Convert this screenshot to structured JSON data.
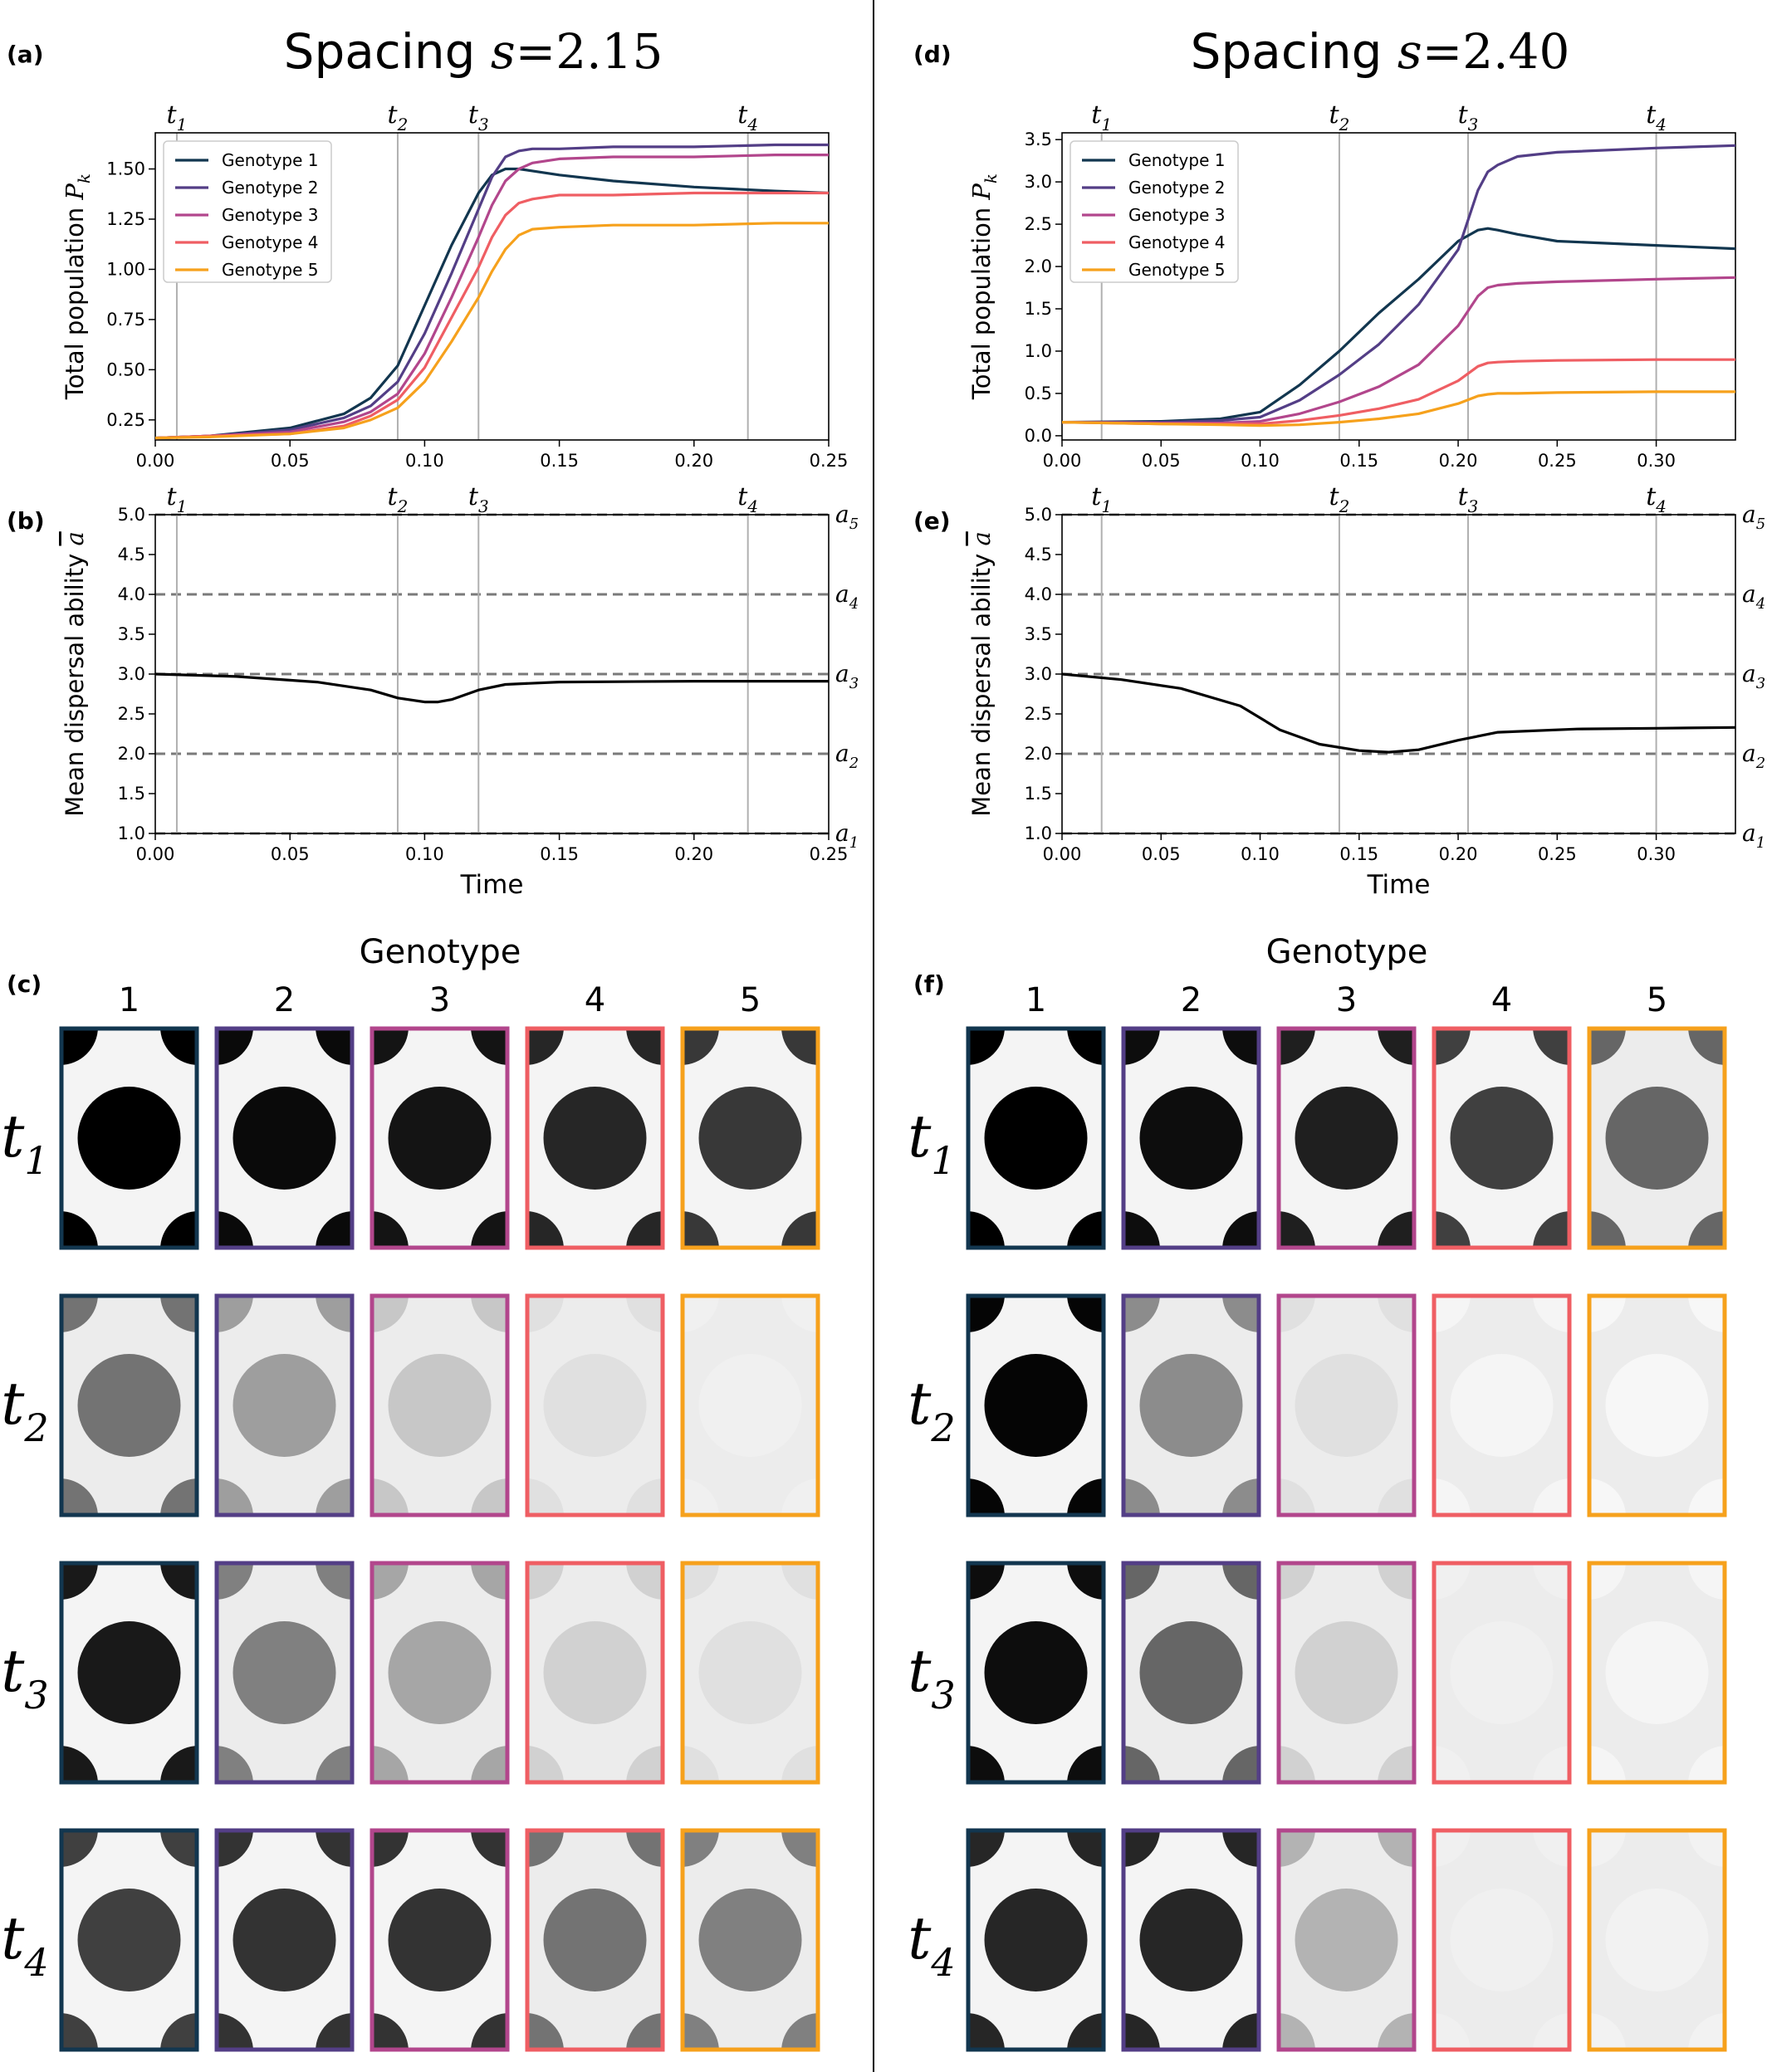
{
  "colors": {
    "genotypes": [
      "#12364f",
      "#533e86",
      "#b2468c",
      "#ef5e63",
      "#f6a11c"
    ],
    "vline": "#b0b0b0",
    "dashed": "#7a7a7a"
  },
  "panels": [
    {
      "pop_label": "(a)",
      "disp_label": "(b)",
      "grid_label": "(c)",
      "title_prefix": "Spacing",
      "title_var": "s",
      "title_value": "=2.15",
      "t_marks": [
        0.008,
        0.09,
        0.12,
        0.22
      ],
      "grid_header": "Genotype",
      "grid_intensity": [
        [
          1.0,
          0.96,
          0.92,
          0.85,
          0.78
        ],
        [
          0.55,
          0.38,
          0.22,
          0.12,
          0.06
        ],
        [
          0.9,
          0.5,
          0.35,
          0.18,
          0.12
        ],
        [
          0.75,
          0.8,
          0.8,
          0.55,
          0.5
        ]
      ]
    },
    {
      "pop_label": "(d)",
      "disp_label": "(e)",
      "grid_label": "(f)",
      "title_prefix": "Spacing",
      "title_var": "s",
      "title_value": "=2.40",
      "t_marks": [
        0.02,
        0.14,
        0.205,
        0.3
      ],
      "grid_header": "Genotype",
      "grid_intensity": [
        [
          1.0,
          0.95,
          0.88,
          0.75,
          0.6
        ],
        [
          0.98,
          0.45,
          0.12,
          0.04,
          0.03
        ],
        [
          0.95,
          0.6,
          0.18,
          0.06,
          0.04
        ],
        [
          0.85,
          0.85,
          0.3,
          0.06,
          0.05
        ]
      ]
    }
  ],
  "chart_data": [
    {
      "type": "line",
      "title": "Spacing s=2.15",
      "xlabel": "",
      "ylabel": "Total population P_k",
      "xlim": [
        0,
        0.25
      ],
      "ylim": [
        0.15,
        1.68
      ],
      "xticks": [
        "0.00",
        "0.05",
        "0.10",
        "0.15",
        "0.20",
        "0.25"
      ],
      "xtick_values": [
        0,
        0.05,
        0.1,
        0.15,
        0.2,
        0.25
      ],
      "yticks": [
        "0.25",
        "0.50",
        "0.75",
        "1.00",
        "1.25",
        "1.50"
      ],
      "ytick_values": [
        0.25,
        0.5,
        0.75,
        1.0,
        1.25,
        1.5
      ],
      "time_markers": [
        "t1",
        "t2",
        "t3",
        "t4"
      ],
      "legend_loc": "upper-left",
      "x": [
        0,
        0.02,
        0.05,
        0.07,
        0.08,
        0.09,
        0.1,
        0.11,
        0.12,
        0.125,
        0.13,
        0.135,
        0.14,
        0.15,
        0.17,
        0.2,
        0.23,
        0.25
      ],
      "series": [
        {
          "name": "Genotype 1",
          "values": [
            0.16,
            0.17,
            0.21,
            0.28,
            0.36,
            0.52,
            0.82,
            1.12,
            1.38,
            1.47,
            1.5,
            1.5,
            1.49,
            1.47,
            1.44,
            1.41,
            1.39,
            1.38
          ]
        },
        {
          "name": "Genotype 2",
          "values": [
            0.16,
            0.17,
            0.2,
            0.26,
            0.32,
            0.44,
            0.68,
            0.98,
            1.3,
            1.46,
            1.56,
            1.59,
            1.6,
            1.6,
            1.61,
            1.61,
            1.62,
            1.62
          ]
        },
        {
          "name": "Genotype 3",
          "values": [
            0.16,
            0.17,
            0.19,
            0.24,
            0.29,
            0.38,
            0.58,
            0.86,
            1.16,
            1.32,
            1.44,
            1.5,
            1.53,
            1.55,
            1.56,
            1.56,
            1.57,
            1.57
          ]
        },
        {
          "name": "Genotype 4",
          "values": [
            0.16,
            0.17,
            0.18,
            0.22,
            0.27,
            0.35,
            0.51,
            0.76,
            1.01,
            1.16,
            1.27,
            1.33,
            1.35,
            1.37,
            1.37,
            1.38,
            1.38,
            1.38
          ]
        },
        {
          "name": "Genotype 5",
          "values": [
            0.16,
            0.165,
            0.18,
            0.21,
            0.25,
            0.31,
            0.44,
            0.64,
            0.86,
            0.99,
            1.1,
            1.17,
            1.2,
            1.21,
            1.22,
            1.22,
            1.23,
            1.23
          ]
        }
      ]
    },
    {
      "type": "line",
      "xlabel": "Time",
      "ylabel": "Mean dispersal ability a̅",
      "xlim": [
        0,
        0.25
      ],
      "ylim": [
        1.0,
        5.0
      ],
      "xticks": [
        "0.00",
        "0.05",
        "0.10",
        "0.15",
        "0.20",
        "0.25"
      ],
      "xtick_values": [
        0,
        0.05,
        0.1,
        0.15,
        0.2,
        0.25
      ],
      "yticks": [
        "1.0",
        "1.5",
        "2.0",
        "2.5",
        "3.0",
        "3.5",
        "4.0",
        "4.5",
        "5.0"
      ],
      "ytick_values": [
        1.0,
        1.5,
        2.0,
        2.5,
        3.0,
        3.5,
        4.0,
        4.5,
        5.0
      ],
      "right_labels": [
        "a1",
        "a2",
        "a3",
        "a4",
        "a5"
      ],
      "dashed_levels": [
        1,
        2,
        3,
        4,
        5
      ],
      "time_markers": [
        "t1",
        "t2",
        "t3",
        "t4"
      ],
      "x": [
        0,
        0.03,
        0.06,
        0.08,
        0.09,
        0.1,
        0.105,
        0.11,
        0.12,
        0.13,
        0.15,
        0.2,
        0.25
      ],
      "series": [
        {
          "values": [
            3.0,
            2.97,
            2.9,
            2.8,
            2.7,
            2.65,
            2.65,
            2.68,
            2.8,
            2.87,
            2.9,
            2.91,
            2.91
          ]
        }
      ]
    },
    {
      "type": "line",
      "title": "Spacing s=2.40",
      "xlabel": "",
      "ylabel": "Total population P_k",
      "xlim": [
        0,
        0.34
      ],
      "ylim": [
        -0.05,
        3.58
      ],
      "xticks": [
        "0.00",
        "0.05",
        "0.10",
        "0.15",
        "0.20",
        "0.25",
        "0.30"
      ],
      "xtick_values": [
        0,
        0.05,
        0.1,
        0.15,
        0.2,
        0.25,
        0.3
      ],
      "yticks": [
        "0.0",
        "0.5",
        "1.0",
        "1.5",
        "2.0",
        "2.5",
        "3.0",
        "3.5"
      ],
      "ytick_values": [
        0,
        0.5,
        1.0,
        1.5,
        2.0,
        2.5,
        3.0,
        3.5
      ],
      "time_markers": [
        "t1",
        "t2",
        "t3",
        "t4"
      ],
      "legend_loc": "upper-left",
      "x": [
        0,
        0.05,
        0.08,
        0.1,
        0.12,
        0.14,
        0.16,
        0.18,
        0.2,
        0.21,
        0.215,
        0.22,
        0.23,
        0.25,
        0.3,
        0.34
      ],
      "series": [
        {
          "name": "Genotype 1",
          "values": [
            0.16,
            0.17,
            0.2,
            0.28,
            0.6,
            1.0,
            1.45,
            1.85,
            2.3,
            2.43,
            2.45,
            2.43,
            2.38,
            2.3,
            2.25,
            2.21
          ]
        },
        {
          "name": "Genotype 2",
          "values": [
            0.16,
            0.16,
            0.18,
            0.22,
            0.42,
            0.72,
            1.08,
            1.55,
            2.2,
            2.9,
            3.12,
            3.2,
            3.3,
            3.35,
            3.4,
            3.43
          ]
        },
        {
          "name": "Genotype 3",
          "values": [
            0.16,
            0.15,
            0.15,
            0.17,
            0.26,
            0.4,
            0.58,
            0.84,
            1.3,
            1.65,
            1.75,
            1.78,
            1.8,
            1.82,
            1.85,
            1.87
          ]
        },
        {
          "name": "Genotype 4",
          "values": [
            0.16,
            0.14,
            0.14,
            0.14,
            0.18,
            0.24,
            0.32,
            0.43,
            0.65,
            0.82,
            0.86,
            0.87,
            0.88,
            0.89,
            0.9,
            0.9
          ]
        },
        {
          "name": "Genotype 5",
          "values": [
            0.16,
            0.14,
            0.13,
            0.12,
            0.13,
            0.16,
            0.2,
            0.26,
            0.38,
            0.47,
            0.49,
            0.5,
            0.5,
            0.51,
            0.52,
            0.52
          ]
        }
      ]
    },
    {
      "type": "line",
      "xlabel": "Time",
      "ylabel": "Mean dispersal ability a̅",
      "xlim": [
        0,
        0.34
      ],
      "ylim": [
        1.0,
        5.0
      ],
      "xticks": [
        "0.00",
        "0.05",
        "0.10",
        "0.15",
        "0.20",
        "0.25",
        "0.30"
      ],
      "xtick_values": [
        0,
        0.05,
        0.1,
        0.15,
        0.2,
        0.25,
        0.3
      ],
      "yticks": [
        "1.0",
        "1.5",
        "2.0",
        "2.5",
        "3.0",
        "3.5",
        "4.0",
        "4.5",
        "5.0"
      ],
      "ytick_values": [
        1.0,
        1.5,
        2.0,
        2.5,
        3.0,
        3.5,
        4.0,
        4.5,
        5.0
      ],
      "right_labels": [
        "a1",
        "a2",
        "a3",
        "a4",
        "a5"
      ],
      "dashed_levels": [
        1,
        2,
        3,
        4,
        5
      ],
      "time_markers": [
        "t1",
        "t2",
        "t3",
        "t4"
      ],
      "x": [
        0,
        0.03,
        0.06,
        0.09,
        0.11,
        0.13,
        0.15,
        0.165,
        0.18,
        0.2,
        0.22,
        0.26,
        0.3,
        0.34
      ],
      "series": [
        {
          "values": [
            3.0,
            2.93,
            2.82,
            2.6,
            2.3,
            2.12,
            2.04,
            2.02,
            2.05,
            2.17,
            2.27,
            2.31,
            2.32,
            2.33
          ]
        }
      ]
    }
  ]
}
